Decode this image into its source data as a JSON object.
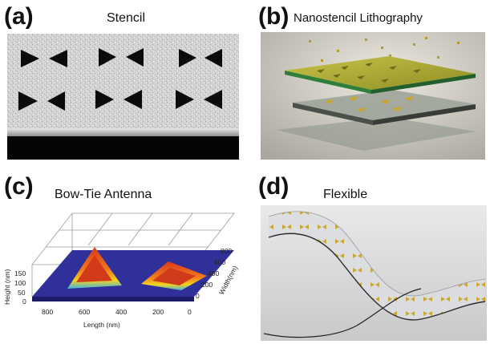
{
  "panels": {
    "a": {
      "letter": "(a)",
      "title": "Stencil"
    },
    "b": {
      "letter": "(b)",
      "title": "Nanostencil Lithography"
    },
    "c": {
      "letter": "(c)",
      "title": "Bow-Tie Antenna",
      "height_label": "Height (nm)",
      "length_label": "Length (nm)",
      "width_label": "Width(nm)",
      "height_ticks": [
        "150",
        "100",
        "50",
        "0"
      ],
      "length_ticks": [
        "800",
        "600",
        "400",
        "200",
        "0"
      ],
      "width_ticks": [
        "800",
        "600",
        "400",
        "200",
        "0"
      ]
    },
    "d": {
      "letter": "(d)",
      "title": "Flexible"
    }
  }
}
